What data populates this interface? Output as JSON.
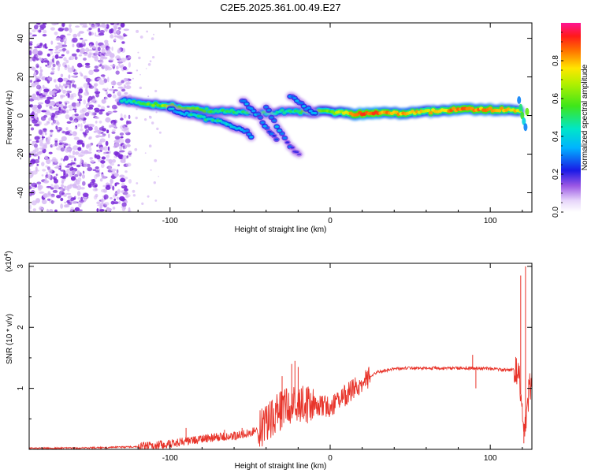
{
  "title": "C2E5.2025.361.00.49.E27",
  "colors": {
    "snr_line": "#e8342a",
    "speckle_dark": "#7a28d8",
    "speckle_light": "#d6b8f4",
    "axis": "#000000"
  },
  "chart_data": [
    {
      "type": "heatmap",
      "title": "C2E5.2025.361.00.49.E27",
      "xlabel": "Height of straight line (km)",
      "ylabel": "Frequency (Hz)",
      "xlim": [
        -188,
        126
      ],
      "ylim": [
        -50,
        48
      ],
      "xticks": [
        -100,
        0,
        100
      ],
      "xtick_labels": [
        "-100",
        "0",
        "100"
      ],
      "yticks": [
        -40,
        -20,
        0,
        20,
        40
      ],
      "ytick_labels": [
        "-40",
        "-20",
        "0",
        "20",
        "40"
      ],
      "colorbar": {
        "label": "Normalized spectral amplitude",
        "range": [
          0,
          1
        ],
        "ticks": [
          0.0,
          0.2,
          0.4,
          0.6,
          0.8
        ],
        "tick_labels": [
          "0.0",
          "0.2",
          "0.4",
          "0.6",
          "0.8"
        ]
      },
      "noise_region_km": [
        -188,
        -125
      ],
      "ridges": [
        {
          "name": "main",
          "points": [
            [
              -130,
              8,
              0.45
            ],
            [
              -115,
              6,
              0.55
            ],
            [
              -100,
              5,
              0.65
            ],
            [
              -90,
              4,
              0.6
            ],
            [
              -80,
              3,
              0.55
            ],
            [
              -70,
              2,
              0.5
            ],
            [
              -60,
              2,
              0.5
            ],
            [
              -50,
              1,
              0.45
            ],
            [
              -40,
              1,
              0.45
            ],
            [
              -30,
              2,
              0.45
            ],
            [
              -20,
              2,
              0.5
            ],
            [
              -10,
              2,
              0.55
            ],
            [
              0,
              2,
              0.6
            ],
            [
              10,
              1,
              0.75
            ],
            [
              20,
              1,
              0.9
            ],
            [
              40,
              1,
              0.8
            ],
            [
              60,
              2,
              0.75
            ],
            [
              80,
              3,
              0.85
            ],
            [
              100,
              3,
              0.8
            ],
            [
              120,
              3,
              0.75
            ]
          ]
        },
        {
          "name": "lower-branch",
          "points": [
            [
              -100,
              3,
              0.35
            ],
            [
              -85,
              0,
              0.45
            ],
            [
              -70,
              -3,
              0.45
            ],
            [
              -60,
              -6,
              0.4
            ],
            [
              -52,
              -8,
              0.35
            ],
            [
              -48,
              -12,
              0.3
            ]
          ]
        },
        {
          "name": "streak-a",
          "points": [
            [
              -40,
              5,
              0.3
            ],
            [
              -35,
              -3,
              0.35
            ],
            [
              -30,
              -10,
              0.3
            ],
            [
              -25,
              -16,
              0.25
            ],
            [
              -18,
              -22,
              0.2
            ]
          ]
        },
        {
          "name": "streak-b",
          "points": [
            [
              -55,
              8,
              0.3
            ],
            [
              -45,
              0,
              0.35
            ],
            [
              -38,
              -8,
              0.3
            ],
            [
              -32,
              -14,
              0.25
            ]
          ]
        },
        {
          "name": "streak-c",
          "points": [
            [
              -25,
              10,
              0.3
            ],
            [
              -15,
              4,
              0.35
            ],
            [
              -8,
              0,
              0.3
            ]
          ]
        }
      ]
    },
    {
      "type": "line",
      "xlabel": "Height of straight line (km)",
      "ylabel": "SNR (10 * v/v)",
      "y_multiplier": "(x10",
      "y_multiplier_exp": "4",
      "y_multiplier_close": ")",
      "xlim": [
        -188,
        126
      ],
      "ylim": [
        0,
        3.05
      ],
      "xticks": [
        -100,
        0,
        100
      ],
      "xtick_labels": [
        "-100",
        "0",
        "100"
      ],
      "yticks": [
        1,
        2,
        3
      ],
      "ytick_labels": [
        "1",
        "2",
        "3"
      ],
      "series": [
        {
          "name": "SNR",
          "envelope_x": [
            -188,
            -160,
            -140,
            -125,
            -110,
            -100,
            -90,
            -80,
            -70,
            -60,
            -50,
            -40,
            -35,
            -30,
            -25,
            -20,
            -15,
            -10,
            -5,
            0,
            5,
            10,
            15,
            20,
            25,
            30,
            40,
            50,
            60,
            70,
            80,
            90,
            95,
            100,
            110,
            116,
            118,
            120,
            122,
            124,
            126
          ],
          "envelope_y": [
            0.02,
            0.02,
            0.03,
            0.04,
            0.06,
            0.09,
            0.13,
            0.17,
            0.2,
            0.22,
            0.27,
            0.4,
            0.55,
            0.65,
            0.72,
            0.78,
            0.72,
            0.7,
            0.72,
            0.7,
            0.78,
            0.9,
            1.0,
            1.1,
            1.2,
            1.27,
            1.32,
            1.33,
            1.33,
            1.33,
            1.33,
            1.33,
            1.33,
            1.32,
            1.3,
            1.3,
            1.3,
            0.5,
            0.3,
            0.9,
            1.2
          ],
          "spikes_x": [
            -90,
            -66,
            -55,
            -34,
            -30,
            -24,
            -22,
            -20,
            -18,
            89,
            91,
            119,
            121,
            122
          ],
          "spikes_y": [
            0.35,
            0.32,
            0.35,
            0.6,
            1.2,
            1.4,
            1.45,
            1.35,
            1.0,
            1.55,
            1.0,
            2.85,
            0.1,
            3.0
          ]
        }
      ]
    }
  ]
}
